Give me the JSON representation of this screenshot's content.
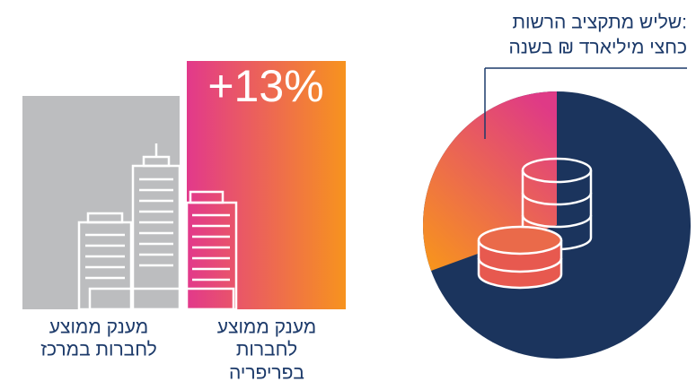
{
  "callout": {
    "lines": [
      "שליש מתקציב הרשות:",
      "כחצי מיליארד ₪ בשנה"
    ]
  },
  "center_bar": {
    "label_lines": [
      "מענק ממוצע",
      "לחברות במרכז"
    ]
  },
  "periphery_bar": {
    "badge": "+13%",
    "label_lines": [
      "מענק ממוצע",
      "לחברות",
      "בפריפריה"
    ]
  }
}
